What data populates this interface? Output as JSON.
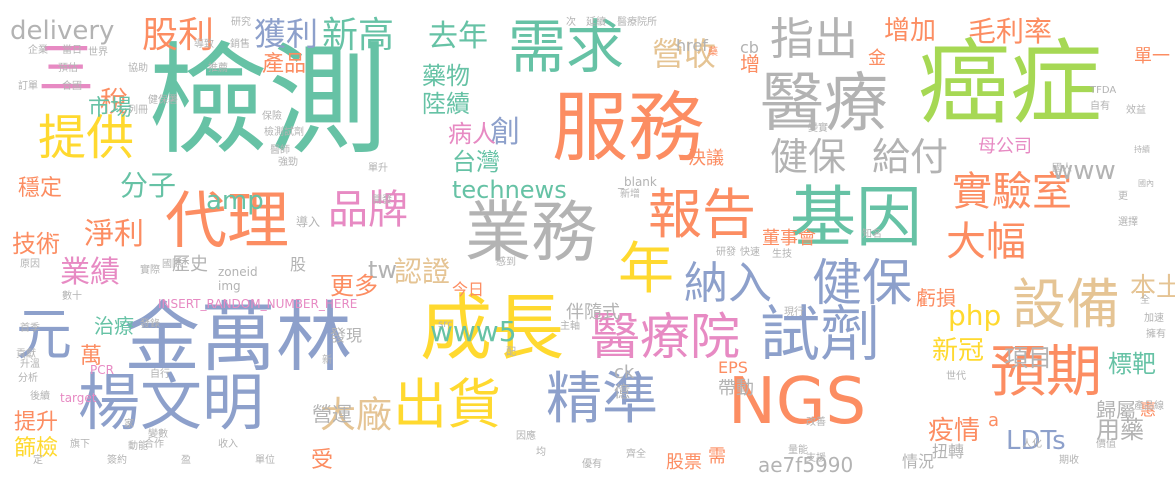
{
  "palette": {
    "green": "#66c2a5",
    "orange": "#fc8d62",
    "blue": "#8da0cb",
    "pink": "#e78ac3",
    "lime": "#a6d854",
    "yellow": "#ffd92f",
    "tan": "#e5c494",
    "gray": "#b3b3b3"
  },
  "words": [
    "檢測",
    "癌症",
    "服務",
    "醫療",
    "需求",
    "基因",
    "金萬林",
    "成長",
    "業務",
    "代理",
    "試劑",
    "報告",
    "楊文明",
    "精準",
    "出貨",
    "NGS",
    "預期",
    "設備",
    "醫療院",
    "年",
    "健保",
    "納入",
    "指出",
    "提供",
    "三",
    "元",
    "實驗室",
    "大幅",
    "品牌",
    "股利",
    "獲利",
    "新高",
    "營收",
    "去年",
    "毛利率",
    "增加",
    "delivery",
    "給付",
    "健保",
    "創",
    "稅",
    "市場",
    "technews",
    "www",
    "amp",
    "www5",
    "tw",
    "分子",
    "淨利",
    "技術",
    "業績",
    "穩定",
    "認證",
    "大廠",
    "伴隨式",
    "php",
    "本土",
    "台灣",
    "病人",
    "陸續",
    "藥物",
    "產品",
    "更多",
    "新冠",
    "項目",
    "標靶",
    "LDTs",
    "疫情",
    "用藥",
    "EPS",
    "帶動",
    "ae7f5990",
    "股票",
    "營運",
    "治療",
    "萬",
    "提升",
    "篩檢",
    "虧損",
    "歸屬",
    "母公司",
    "董事會",
    "決議",
    "單一",
    "cb",
    "增",
    "金",
    "href",
    "ck",
    "億",
    "今日",
    "發現",
    "歷史",
    "股",
    "受",
    "需",
    "情況",
    "扭轉",
    "惠",
    "a",
    "PCR",
    "target",
    "src",
    "img",
    "INSERT_RANDOM_NUMBER_HERE",
    "zoneid",
    "_blank",
    "新增",
    "TFDA",
    "國內",
    "研究",
    "藥",
    "延續",
    "醫療院所",
    "次",
    "研發",
    "快速",
    "生技",
    "知名",
    "更",
    "選擇",
    "國人",
    "持續",
    "企業",
    "當日",
    "世界",
    "預估",
    "協助",
    "推薦",
    "健保署",
    "列冊",
    "保險",
    "檢測試劑",
    "醫師",
    "強勁",
    "導入",
    "新",
    "配",
    "因應",
    "均",
    "優有",
    "齊全",
    "量能",
    "支援",
    "改善",
    "變實",
    "世代",
    "自有",
    "效益",
    "單升",
    "開發",
    "導致",
    "銷售",
    "訂單",
    "合國",
    "變數",
    "數十",
    "發錄",
    "自行",
    "家",
    "動能",
    "首季",
    "貢獻",
    "升溫",
    "分析",
    "後續",
    "國際",
    "主軸",
    "感到",
    "現行",
    "擁有",
    "全",
    "加速",
    "產品線",
    "實際",
    "原因",
    "人化",
    "期收",
    "價值",
    "定",
    "旗下",
    "簽約",
    "合作",
    "盈",
    "收入",
    "單位"
  ]
}
